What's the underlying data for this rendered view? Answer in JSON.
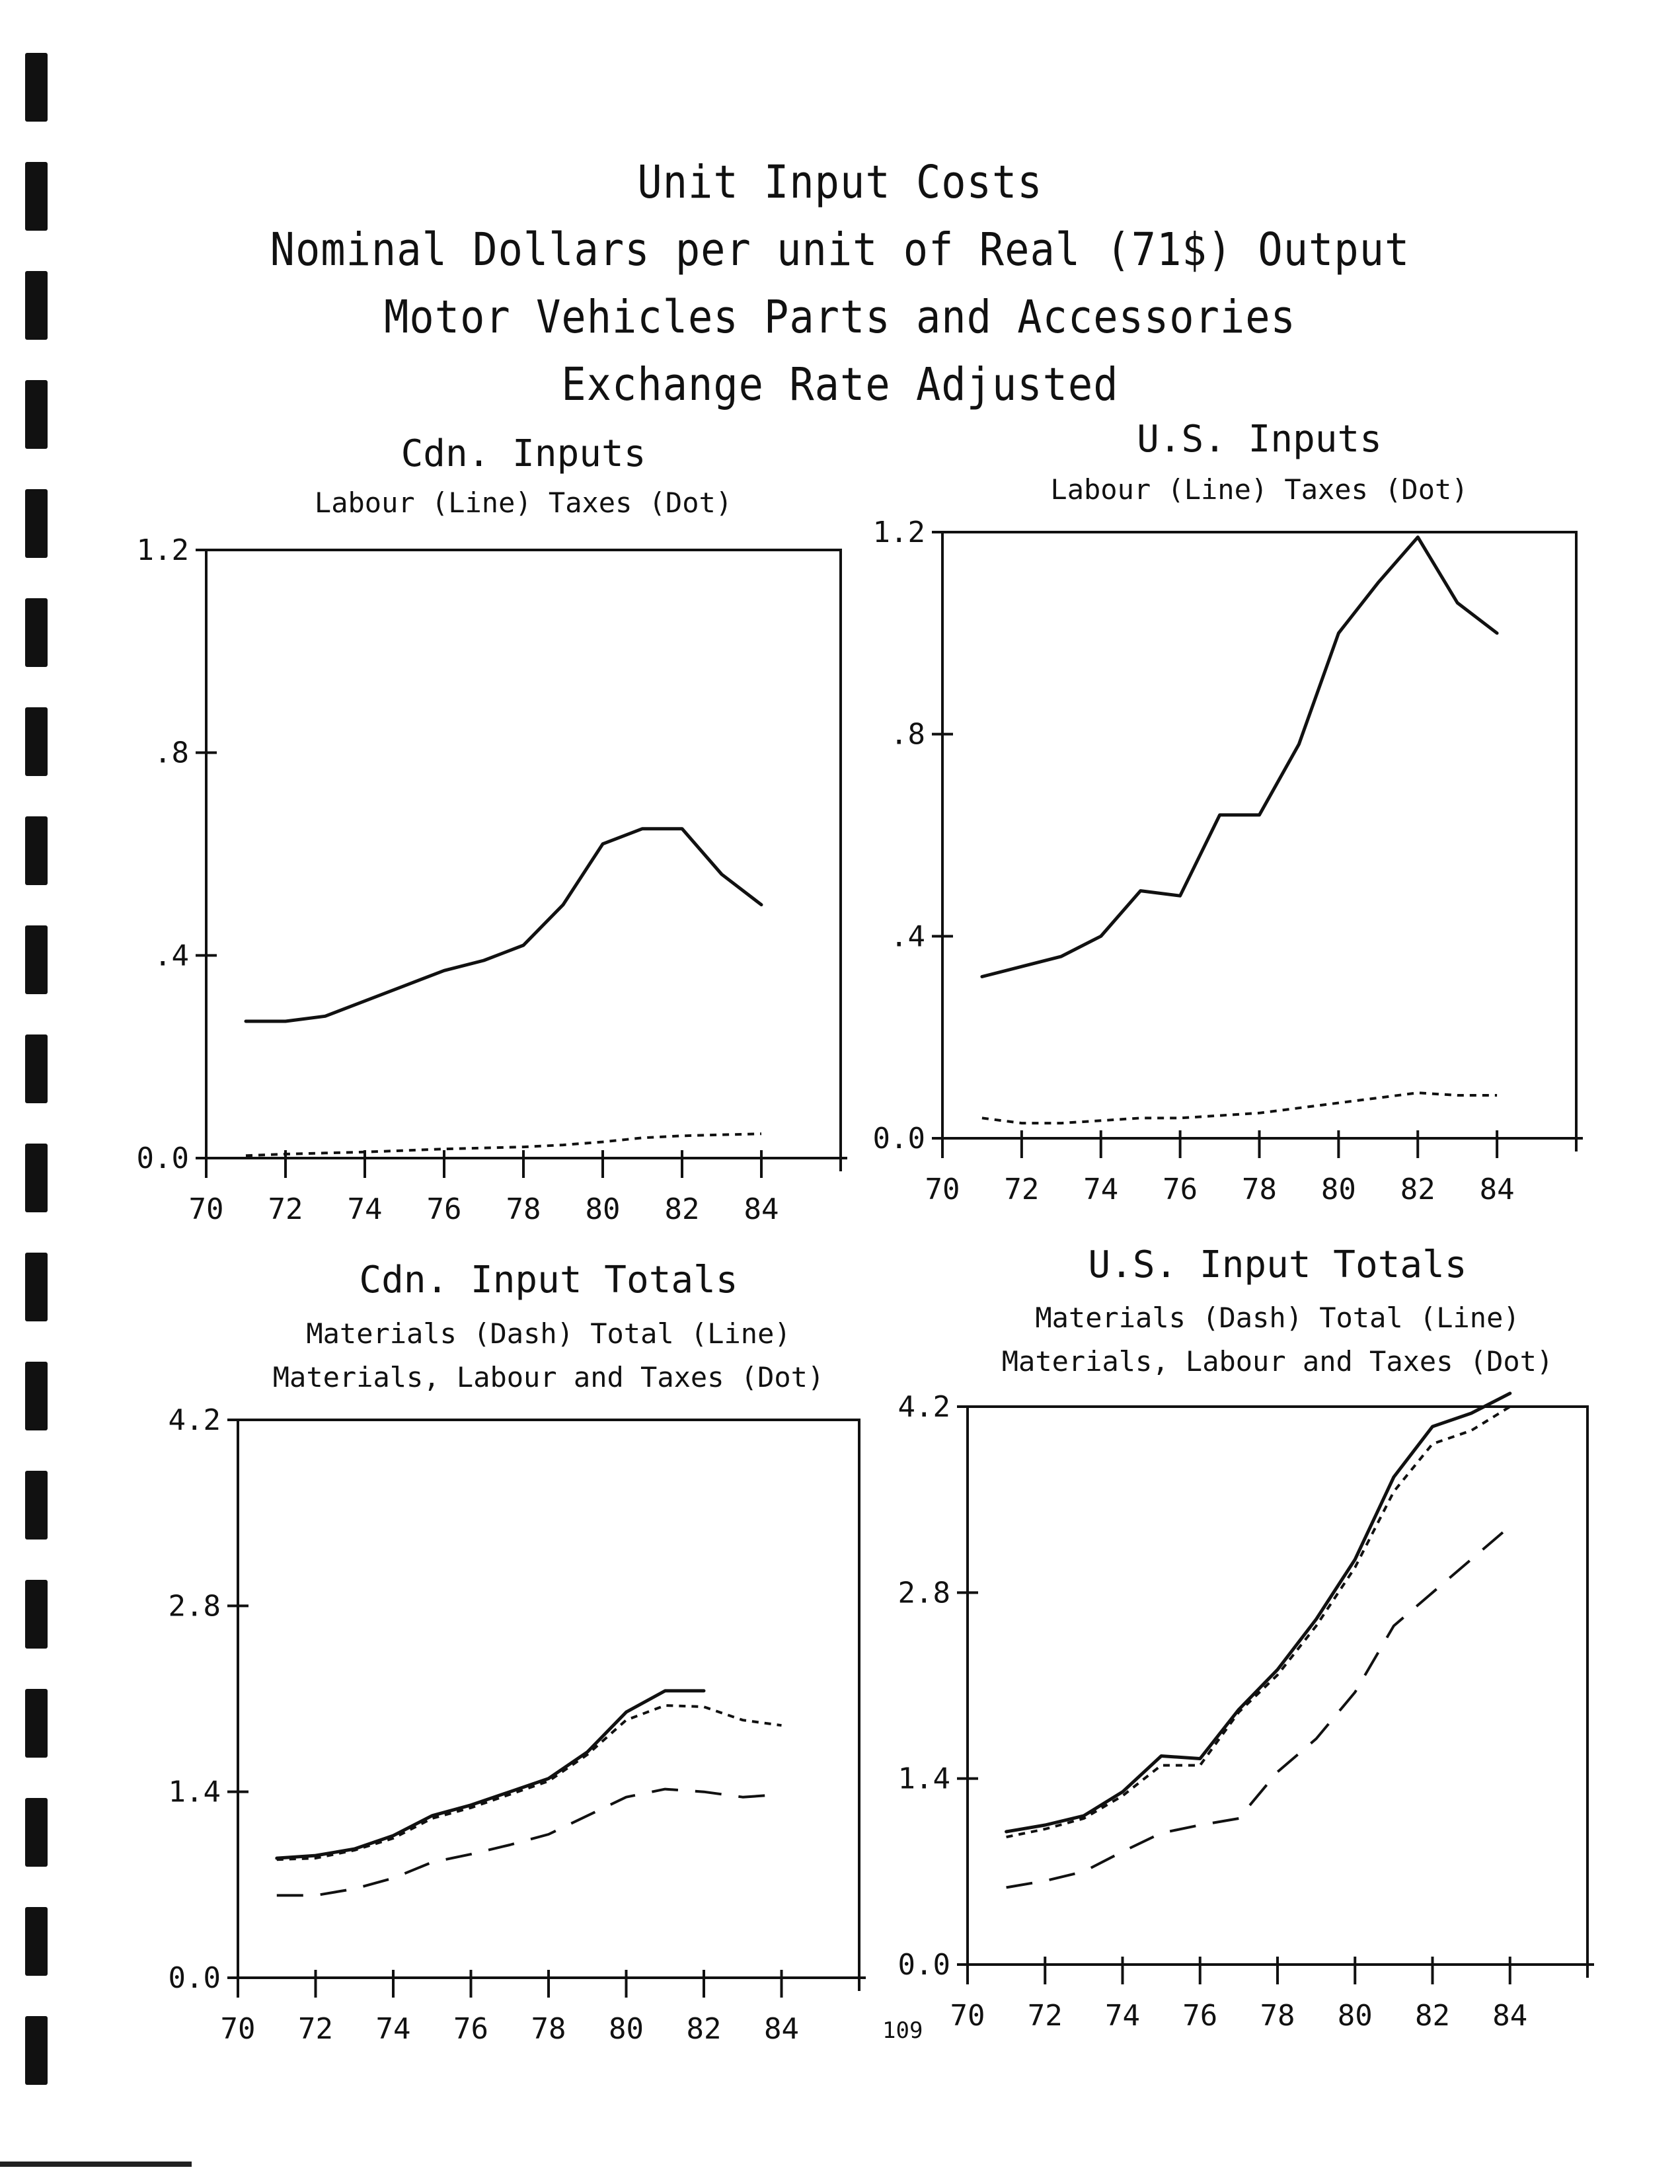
{
  "titles": {
    "line1": "Unit Input Costs",
    "line2": "Nominal Dollars per unit of Real (71$) Output",
    "line3": "Motor Vehicles Parts and Accessories",
    "line4": "Exchange Rate Adjusted"
  },
  "page_number": "109",
  "chart_data": [
    {
      "type": "line",
      "title": "Cdn. Inputs",
      "subtitle": [
        "Labour (Line) Taxes (Dot)"
      ],
      "xlim": [
        70,
        86
      ],
      "xticks": [
        70,
        72,
        74,
        76,
        78,
        80,
        82,
        84
      ],
      "ylim": [
        0,
        1.2
      ],
      "yticks": [
        0.0,
        0.4,
        0.8,
        1.2
      ],
      "ytick_labels": [
        "0.0",
        ".4",
        ".8",
        "1.2"
      ],
      "grid": false,
      "series": [
        {
          "name": "Labour",
          "style": "line",
          "x": [
            71,
            72,
            73,
            74,
            75,
            76,
            77,
            78,
            79,
            80,
            81,
            82,
            83,
            84
          ],
          "values": [
            0.27,
            0.27,
            0.28,
            0.31,
            0.34,
            0.37,
            0.39,
            0.42,
            0.5,
            0.62,
            0.65,
            0.65,
            0.56,
            0.5
          ]
        },
        {
          "name": "Taxes",
          "style": "dot",
          "x": [
            71,
            72,
            73,
            74,
            75,
            76,
            77,
            78,
            79,
            80,
            81,
            82,
            83,
            84
          ],
          "values": [
            0.005,
            0.008,
            0.01,
            0.012,
            0.015,
            0.018,
            0.02,
            0.022,
            0.026,
            0.032,
            0.04,
            0.044,
            0.046,
            0.048
          ]
        }
      ]
    },
    {
      "type": "line",
      "title": "U.S. Inputs",
      "subtitle": [
        "Labour (Line) Taxes (Dot)"
      ],
      "xlim": [
        70,
        86
      ],
      "xticks": [
        70,
        72,
        74,
        76,
        78,
        80,
        82,
        84
      ],
      "ylim": [
        0,
        1.2
      ],
      "yticks": [
        0.0,
        0.4,
        0.8,
        1.2
      ],
      "ytick_labels": [
        "0.0",
        ".4",
        ".8",
        "1.2"
      ],
      "grid": false,
      "series": [
        {
          "name": "Labour",
          "style": "line",
          "x": [
            71,
            72,
            73,
            74,
            75,
            76,
            77,
            78,
            79,
            80,
            81,
            82,
            83,
            84
          ],
          "values": [
            0.32,
            0.34,
            0.36,
            0.4,
            0.49,
            0.48,
            0.64,
            0.64,
            0.78,
            1.0,
            1.1,
            1.19,
            1.06,
            1.0
          ]
        },
        {
          "name": "Taxes",
          "style": "dot",
          "x": [
            71,
            72,
            73,
            74,
            75,
            76,
            77,
            78,
            79,
            80,
            81,
            82,
            83,
            84
          ],
          "values": [
            0.04,
            0.03,
            0.03,
            0.035,
            0.04,
            0.04,
            0.045,
            0.05,
            0.06,
            0.07,
            0.08,
            0.09,
            0.085,
            0.085
          ]
        }
      ]
    },
    {
      "type": "line",
      "title": "Cdn. Input Totals",
      "subtitle": [
        "Materials (Dash) Total (Line)",
        "Materials, Labour and Taxes (Dot)"
      ],
      "xlim": [
        70,
        86
      ],
      "xticks": [
        70,
        72,
        74,
        76,
        78,
        80,
        82,
        84
      ],
      "ylim": [
        0,
        4.2
      ],
      "yticks": [
        0.0,
        1.4,
        2.8,
        4.2
      ],
      "ytick_labels": [
        "0.0",
        "1.4",
        "2.8",
        "4.2"
      ],
      "grid": false,
      "series": [
        {
          "name": "Materials",
          "style": "dash",
          "x": [
            71,
            72,
            73,
            74,
            75,
            76,
            77,
            78,
            79,
            80,
            81,
            82,
            83,
            84
          ],
          "values": [
            0.62,
            0.62,
            0.67,
            0.75,
            0.87,
            0.93,
            1.0,
            1.08,
            1.22,
            1.36,
            1.42,
            1.4,
            1.36,
            1.38
          ]
        },
        {
          "name": "Total",
          "style": "line",
          "x": [
            71,
            72,
            73,
            74,
            75,
            76,
            77,
            78,
            79,
            80,
            81,
            82
          ],
          "values": [
            0.9,
            0.92,
            0.97,
            1.07,
            1.22,
            1.3,
            1.4,
            1.5,
            1.7,
            2.0,
            2.16,
            2.16
          ]
        },
        {
          "name": "Materials, Labour and Taxes",
          "style": "dot",
          "x": [
            71,
            72,
            73,
            74,
            75,
            76,
            77,
            78,
            79,
            80,
            81,
            82,
            83,
            84
          ],
          "values": [
            0.89,
            0.9,
            0.96,
            1.05,
            1.2,
            1.28,
            1.38,
            1.48,
            1.68,
            1.94,
            2.05,
            2.04,
            1.94,
            1.9
          ]
        }
      ]
    },
    {
      "type": "line",
      "title": "U.S. Input Totals",
      "subtitle": [
        "Materials (Dash) Total (Line)",
        "Materials, Labour and Taxes (Dot)"
      ],
      "xlim": [
        70,
        86
      ],
      "xticks": [
        70,
        72,
        74,
        76,
        78,
        80,
        82,
        84
      ],
      "ylim": [
        0,
        4.2
      ],
      "yticks": [
        0.0,
        1.4,
        2.8,
        4.2
      ],
      "ytick_labels": [
        "0.0",
        "1.4",
        "2.8",
        "4.2"
      ],
      "grid": false,
      "series": [
        {
          "name": "Materials",
          "style": "dash",
          "x": [
            71,
            72,
            73,
            74,
            75,
            76,
            77,
            78,
            79,
            80,
            81,
            82,
            83,
            84
          ],
          "values": [
            0.58,
            0.63,
            0.7,
            0.85,
            0.99,
            1.05,
            1.1,
            1.45,
            1.7,
            2.05,
            2.55,
            2.8,
            3.05,
            3.3
          ]
        },
        {
          "name": "Total",
          "style": "line",
          "x": [
            71,
            72,
            73,
            74,
            75,
            76,
            77,
            78,
            79,
            80,
            81,
            82,
            83,
            84
          ],
          "values": [
            1.0,
            1.05,
            1.12,
            1.3,
            1.57,
            1.55,
            1.92,
            2.22,
            2.6,
            3.05,
            3.67,
            4.05,
            4.15,
            4.3
          ]
        },
        {
          "name": "Materials, Labour and Taxes",
          "style": "dot",
          "x": [
            71,
            72,
            73,
            74,
            75,
            76,
            77,
            78,
            79,
            80,
            81,
            82,
            83,
            84
          ],
          "values": [
            0.96,
            1.02,
            1.1,
            1.27,
            1.5,
            1.5,
            1.9,
            2.18,
            2.55,
            2.99,
            3.56,
            3.92,
            4.02,
            4.2
          ]
        }
      ]
    }
  ]
}
